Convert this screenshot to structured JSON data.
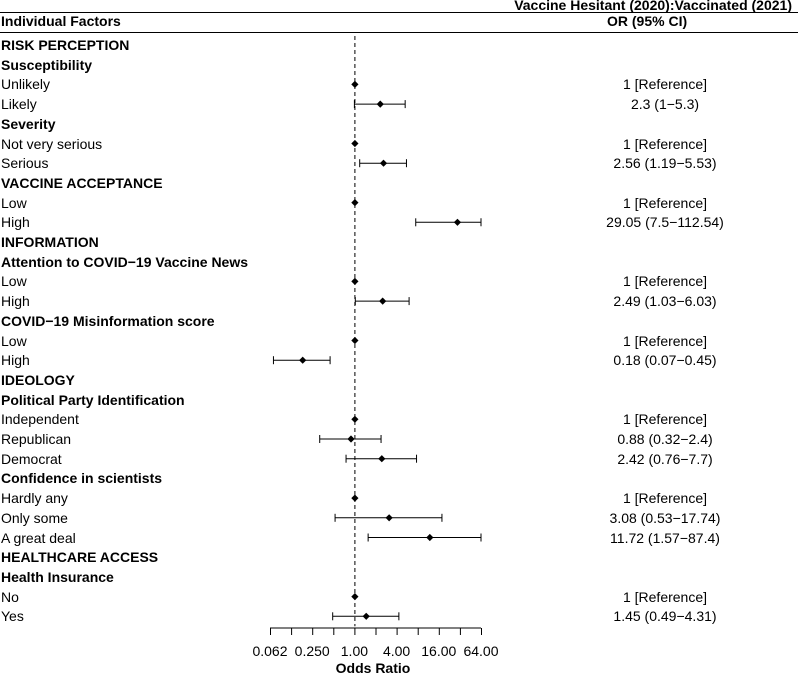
{
  "header": {
    "group_title": "Vaccine Hesitant (2020):Vaccinated (2021)",
    "left_col": "Individual Factors",
    "right_col": "OR (95% CI)"
  },
  "chart_data": {
    "type": "forest",
    "xlabel": "Odds Ratio",
    "x_scale": "log2",
    "xlim": [
      0.0625,
      64
    ],
    "reference_line": 1,
    "tick_labels": [
      "0.062",
      "0.250",
      "1.00",
      "4.00",
      "16.00",
      "64.00"
    ],
    "tick_values": [
      0.0625,
      0.125,
      0.25,
      0.5,
      1,
      2,
      4,
      8,
      16,
      32,
      64
    ],
    "rows": [
      {
        "label": "RISK PERCEPTION",
        "kind": "section"
      },
      {
        "label": "Susceptibility",
        "kind": "group"
      },
      {
        "label": "Unlikely",
        "kind": "item",
        "or": 1,
        "lo": null,
        "hi": null,
        "text": "1 [Reference]"
      },
      {
        "label": "Likely",
        "kind": "item",
        "or": 2.3,
        "lo": 1,
        "hi": 5.3,
        "text": "2.3 (1−5.3)"
      },
      {
        "label": "Severity",
        "kind": "group"
      },
      {
        "label": "Not very serious",
        "kind": "item",
        "or": 1,
        "lo": null,
        "hi": null,
        "text": "1 [Reference]"
      },
      {
        "label": "Serious",
        "kind": "item",
        "or": 2.56,
        "lo": 1.19,
        "hi": 5.53,
        "text": "2.56 (1.19−5.53)"
      },
      {
        "label": "VACCINE ACCEPTANCE",
        "kind": "section"
      },
      {
        "label": "Low",
        "kind": "item",
        "or": 1,
        "lo": null,
        "hi": null,
        "text": "1 [Reference]"
      },
      {
        "label": "High",
        "kind": "item",
        "or": 29.05,
        "lo": 7.5,
        "hi": 112.54,
        "text": "29.05 (7.5−112.54)"
      },
      {
        "label": "INFORMATION",
        "kind": "section"
      },
      {
        "label": "Attention to COVID−19 Vaccine News",
        "kind": "group"
      },
      {
        "label": "Low",
        "kind": "item",
        "or": 1,
        "lo": null,
        "hi": null,
        "text": "1 [Reference]"
      },
      {
        "label": "High",
        "kind": "item",
        "or": 2.49,
        "lo": 1.03,
        "hi": 6.03,
        "text": "2.49 (1.03−6.03)"
      },
      {
        "label": "COVID−19 Misinformation score",
        "kind": "group"
      },
      {
        "label": "Low",
        "kind": "item",
        "or": 1,
        "lo": null,
        "hi": null,
        "text": "1 [Reference]"
      },
      {
        "label": "High",
        "kind": "item",
        "or": 0.18,
        "lo": 0.07,
        "hi": 0.45,
        "text": "0.18 (0.07−0.45)"
      },
      {
        "label": "IDEOLOGY",
        "kind": "section"
      },
      {
        "label": "Political Party Identification",
        "kind": "group"
      },
      {
        "label": "Independent",
        "kind": "item",
        "or": 1,
        "lo": null,
        "hi": null,
        "text": "1 [Reference]"
      },
      {
        "label": "Republican",
        "kind": "item",
        "or": 0.88,
        "lo": 0.32,
        "hi": 2.4,
        "text": "0.88 (0.32−2.4)"
      },
      {
        "label": "Democrat",
        "kind": "item",
        "or": 2.42,
        "lo": 0.76,
        "hi": 7.7,
        "text": "2.42 (0.76−7.7)"
      },
      {
        "label": "Confidence in scientists",
        "kind": "group"
      },
      {
        "label": "Hardly any",
        "kind": "item",
        "or": 1,
        "lo": null,
        "hi": null,
        "text": "1 [Reference]"
      },
      {
        "label": "Only some",
        "kind": "item",
        "or": 3.08,
        "lo": 0.53,
        "hi": 17.74,
        "text": "3.08 (0.53−17.74)"
      },
      {
        "label": "A great deal",
        "kind": "item",
        "or": 11.72,
        "lo": 1.57,
        "hi": 87.4,
        "text": "11.72 (1.57−87.4)"
      },
      {
        "label": "HEALTHCARE ACCESS",
        "kind": "section"
      },
      {
        "label": "Health Insurance",
        "kind": "group"
      },
      {
        "label": "No",
        "kind": "item",
        "or": 1,
        "lo": null,
        "hi": null,
        "text": "1 [Reference]"
      },
      {
        "label": "Yes",
        "kind": "item",
        "or": 1.45,
        "lo": 0.49,
        "hi": 4.31,
        "text": "1.45 (0.49−4.31)"
      }
    ]
  }
}
